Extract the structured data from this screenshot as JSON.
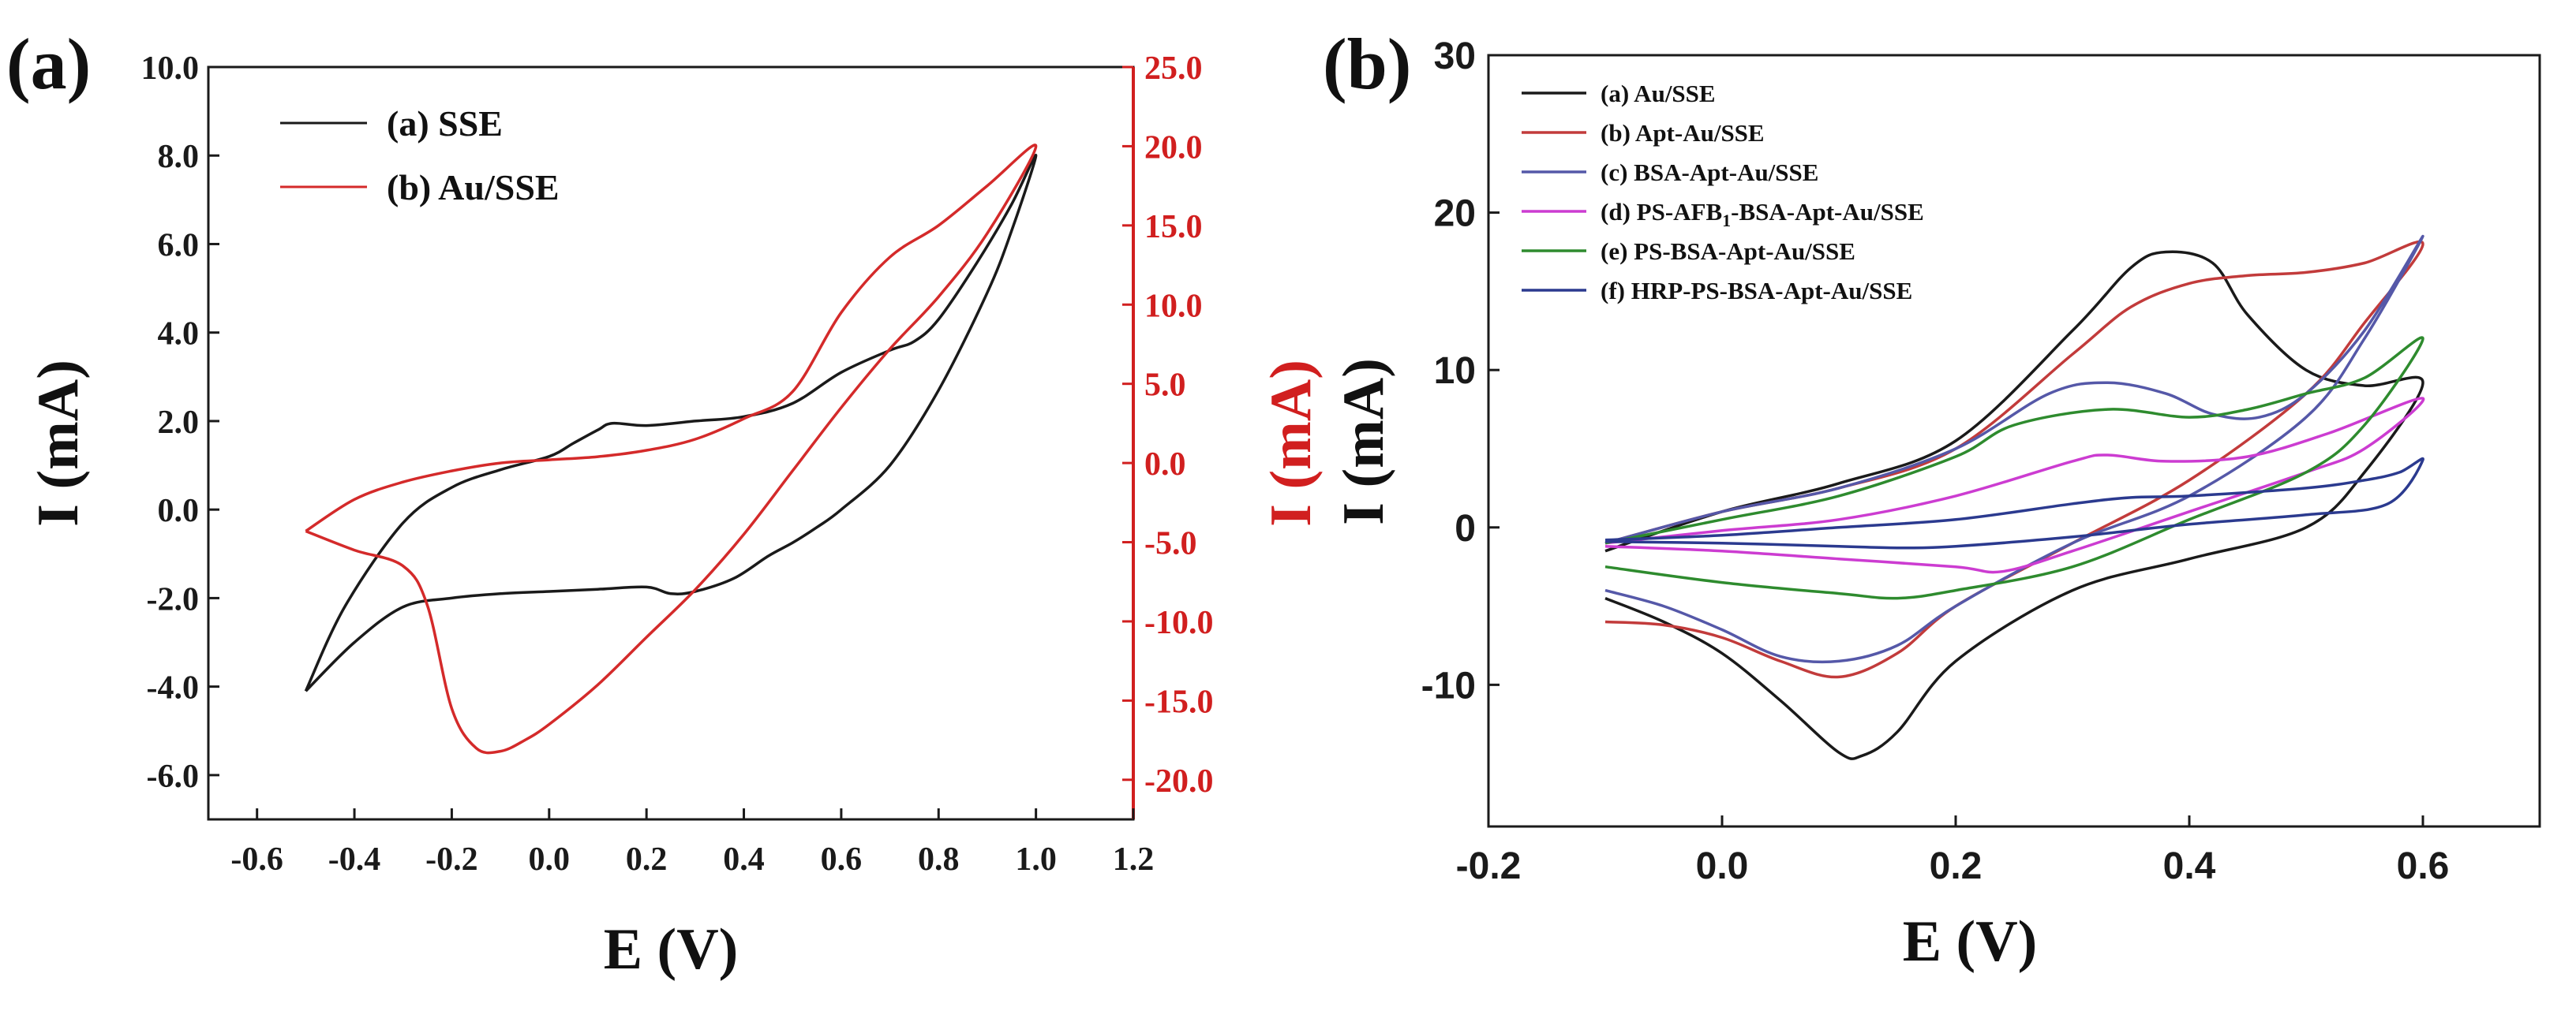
{
  "panels": {
    "a": {
      "label": "(a)"
    },
    "b": {
      "label": "(b)"
    }
  },
  "chart_data": [
    {
      "type": "line",
      "panel_label": "(a)",
      "xlabel": "E (V)",
      "ylabel": "I (mA)",
      "y2label": "I (mA)",
      "xlim": [
        -0.7,
        1.2
      ],
      "ylim": [
        -7.0,
        10.0
      ],
      "y2lim": [
        -22.5,
        25.0
      ],
      "xticks": [
        "-0.6",
        "-0.4",
        "-0.2",
        "0.0",
        "0.2",
        "0.4",
        "0.6",
        "0.8",
        "1.0",
        "1.2"
      ],
      "yticks": [
        "-6.0",
        "-4.0",
        "-2.0",
        "0.0",
        "2.0",
        "4.0",
        "6.0",
        "8.0",
        "10.0"
      ],
      "y2ticks": [
        "-20.0",
        "-15.0",
        "-10.0",
        "-5.0",
        "0.0",
        "5.0",
        "10.0",
        "15.0",
        "20.0",
        "25.0"
      ],
      "legend_position": "upper-left",
      "grid": false,
      "series": [
        {
          "name": "(a) SSE",
          "axis": "left",
          "color": "#1a1a1a",
          "x": [
            -0.5,
            -0.42,
            -0.3,
            -0.2,
            -0.1,
            0.0,
            0.05,
            0.1,
            0.13,
            0.2,
            0.3,
            0.4,
            0.5,
            0.6,
            0.7,
            0.75,
            0.8,
            0.88,
            0.95,
            1.0,
            0.95,
            0.9,
            0.8,
            0.7,
            0.6,
            0.55,
            0.5,
            0.45,
            0.38,
            0.3,
            0.25,
            0.2,
            0.1,
            0.0,
            -0.1,
            -0.2,
            -0.3,
            -0.4,
            -0.5
          ],
          "y": [
            -4.1,
            -2.2,
            -0.3,
            0.5,
            0.9,
            1.2,
            1.5,
            1.8,
            1.95,
            1.9,
            2.0,
            2.1,
            2.4,
            3.1,
            3.6,
            3.8,
            4.3,
            5.6,
            6.9,
            8.0,
            6.3,
            4.9,
            2.7,
            1.0,
            0.0,
            -0.4,
            -0.75,
            -1.05,
            -1.55,
            -1.85,
            -1.9,
            -1.75,
            -1.8,
            -1.85,
            -1.9,
            -2.0,
            -2.2,
            -3.0,
            -4.1
          ]
        },
        {
          "name": "(b) Au/SSE",
          "axis": "right",
          "color": "#d42a2a",
          "x": [
            -0.5,
            -0.4,
            -0.3,
            -0.2,
            -0.1,
            0.0,
            0.1,
            0.2,
            0.3,
            0.4,
            0.5,
            0.6,
            0.7,
            0.8,
            0.9,
            1.0,
            0.9,
            0.8,
            0.7,
            0.6,
            0.5,
            0.4,
            0.3,
            0.2,
            0.1,
            0.0,
            -0.05,
            -0.1,
            -0.15,
            -0.2,
            -0.25,
            -0.3,
            -0.4,
            -0.5
          ],
          "y": [
            -4.3,
            -2.3,
            -1.2,
            -0.5,
            0.0,
            0.2,
            0.4,
            0.8,
            1.5,
            2.8,
            4.5,
            9.5,
            13.0,
            15.0,
            17.5,
            20.0,
            14.5,
            10.5,
            7.2,
            3.5,
            -0.5,
            -4.5,
            -8.0,
            -11.0,
            -14.0,
            -16.5,
            -17.5,
            -18.2,
            -18.0,
            -15.5,
            -9.0,
            -6.5,
            -5.5,
            -4.3
          ]
        }
      ]
    },
    {
      "type": "line",
      "panel_label": "(b)",
      "xlabel": "E (V)",
      "ylabel": "I (mA)",
      "xlim": [
        -0.2,
        0.7
      ],
      "ylim": [
        -19.0,
        30.0
      ],
      "xticks": [
        "-0.2",
        "0.0",
        "0.2",
        "0.4",
        "0.6"
      ],
      "yticks": [
        "-10",
        "0",
        "10",
        "20",
        "30"
      ],
      "legend_position": "upper-left",
      "grid": false,
      "series": [
        {
          "name": "(a) Au/SSE",
          "color": "#1a1a1a",
          "x": [
            -0.1,
            0.0,
            0.1,
            0.2,
            0.3,
            0.35,
            0.38,
            0.42,
            0.45,
            0.5,
            0.55,
            0.6,
            0.55,
            0.5,
            0.4,
            0.3,
            0.2,
            0.15,
            0.12,
            0.1,
            0.05,
            0.0,
            -0.05,
            -0.1
          ],
          "y": [
            -1.5,
            1.0,
            2.8,
            5.5,
            12.5,
            16.5,
            17.5,
            16.8,
            13.5,
            10.0,
            9.0,
            9.2,
            3.5,
            0.0,
            -2.0,
            -4.0,
            -8.5,
            -13.0,
            -14.5,
            -14.3,
            -11.0,
            -8.0,
            -6.0,
            -4.5
          ]
        },
        {
          "name": "(b) Apt-Au/SSE",
          "color": "#c23b3b",
          "x": [
            -0.1,
            0.0,
            0.1,
            0.2,
            0.3,
            0.35,
            0.4,
            0.45,
            0.5,
            0.55,
            0.6,
            0.55,
            0.5,
            0.4,
            0.3,
            0.2,
            0.15,
            0.1,
            0.05,
            0.0,
            -0.05,
            -0.1
          ],
          "y": [
            -1.0,
            1.0,
            2.5,
            5.0,
            11.0,
            14.0,
            15.5,
            16.0,
            16.2,
            16.8,
            18.0,
            13.0,
            8.5,
            3.0,
            -1.0,
            -5.0,
            -8.0,
            -9.5,
            -8.5,
            -7.0,
            -6.2,
            -6.0
          ]
        },
        {
          "name": "(c) BSA-Apt-Au/SSE",
          "color": "#5558a8",
          "x": [
            -0.1,
            0.0,
            0.1,
            0.2,
            0.28,
            0.33,
            0.38,
            0.42,
            0.46,
            0.5,
            0.55,
            0.6,
            0.55,
            0.5,
            0.4,
            0.3,
            0.2,
            0.15,
            0.1,
            0.05,
            0.0,
            -0.05,
            -0.1
          ],
          "y": [
            -1.0,
            1.0,
            2.5,
            5.0,
            8.5,
            9.2,
            8.5,
            7.2,
            7.0,
            8.5,
            12.5,
            18.5,
            12.0,
            7.0,
            2.0,
            -1.0,
            -5.0,
            -7.5,
            -8.5,
            -8.2,
            -6.5,
            -5.0,
            -4.0
          ]
        },
        {
          "name": "(d) PS-AFB1-BSA-Apt-Au/SSE",
          "name_rich": [
            "(d) PS-AFB",
            "1",
            "-BSA-Apt-Au/SSE"
          ],
          "color": "#cc3cd1",
          "x": [
            -0.1,
            0.0,
            0.1,
            0.2,
            0.3,
            0.33,
            0.38,
            0.45,
            0.52,
            0.6,
            0.55,
            0.5,
            0.4,
            0.3,
            0.24,
            0.2,
            0.1,
            0.0,
            -0.1
          ],
          "y": [
            -1.0,
            -0.2,
            0.5,
            2.0,
            4.2,
            4.6,
            4.2,
            4.5,
            6.0,
            8.2,
            5.0,
            3.5,
            1.0,
            -1.5,
            -2.8,
            -2.5,
            -2.0,
            -1.5,
            -1.2
          ]
        },
        {
          "name": "(e) PS-BSA-Apt-Au/SSE",
          "color": "#2e8b2e",
          "x": [
            -0.1,
            0.0,
            0.1,
            0.2,
            0.25,
            0.33,
            0.4,
            0.45,
            0.5,
            0.55,
            0.6,
            0.55,
            0.5,
            0.4,
            0.3,
            0.2,
            0.15,
            0.1,
            0.0,
            -0.1
          ],
          "y": [
            -1.0,
            0.5,
            2.0,
            4.5,
            6.5,
            7.5,
            7.0,
            7.5,
            8.5,
            9.5,
            12.0,
            6.5,
            3.5,
            0.5,
            -2.5,
            -4.0,
            -4.5,
            -4.2,
            -3.5,
            -2.5
          ]
        },
        {
          "name": "(f) HRP-PS-BSA-Apt-Au/SSE",
          "color": "#2b3a8f",
          "x": [
            -0.1,
            0.0,
            0.1,
            0.2,
            0.3,
            0.35,
            0.4,
            0.5,
            0.55,
            0.58,
            0.6,
            0.57,
            0.5,
            0.4,
            0.3,
            0.2,
            0.15,
            0.1,
            0.0,
            -0.1
          ],
          "y": [
            -0.8,
            -0.5,
            0.0,
            0.5,
            1.5,
            1.9,
            2.0,
            2.5,
            3.0,
            3.5,
            4.3,
            1.5,
            0.8,
            0.2,
            -0.6,
            -1.2,
            -1.3,
            -1.2,
            -1.0,
            -0.9
          ]
        }
      ]
    }
  ]
}
